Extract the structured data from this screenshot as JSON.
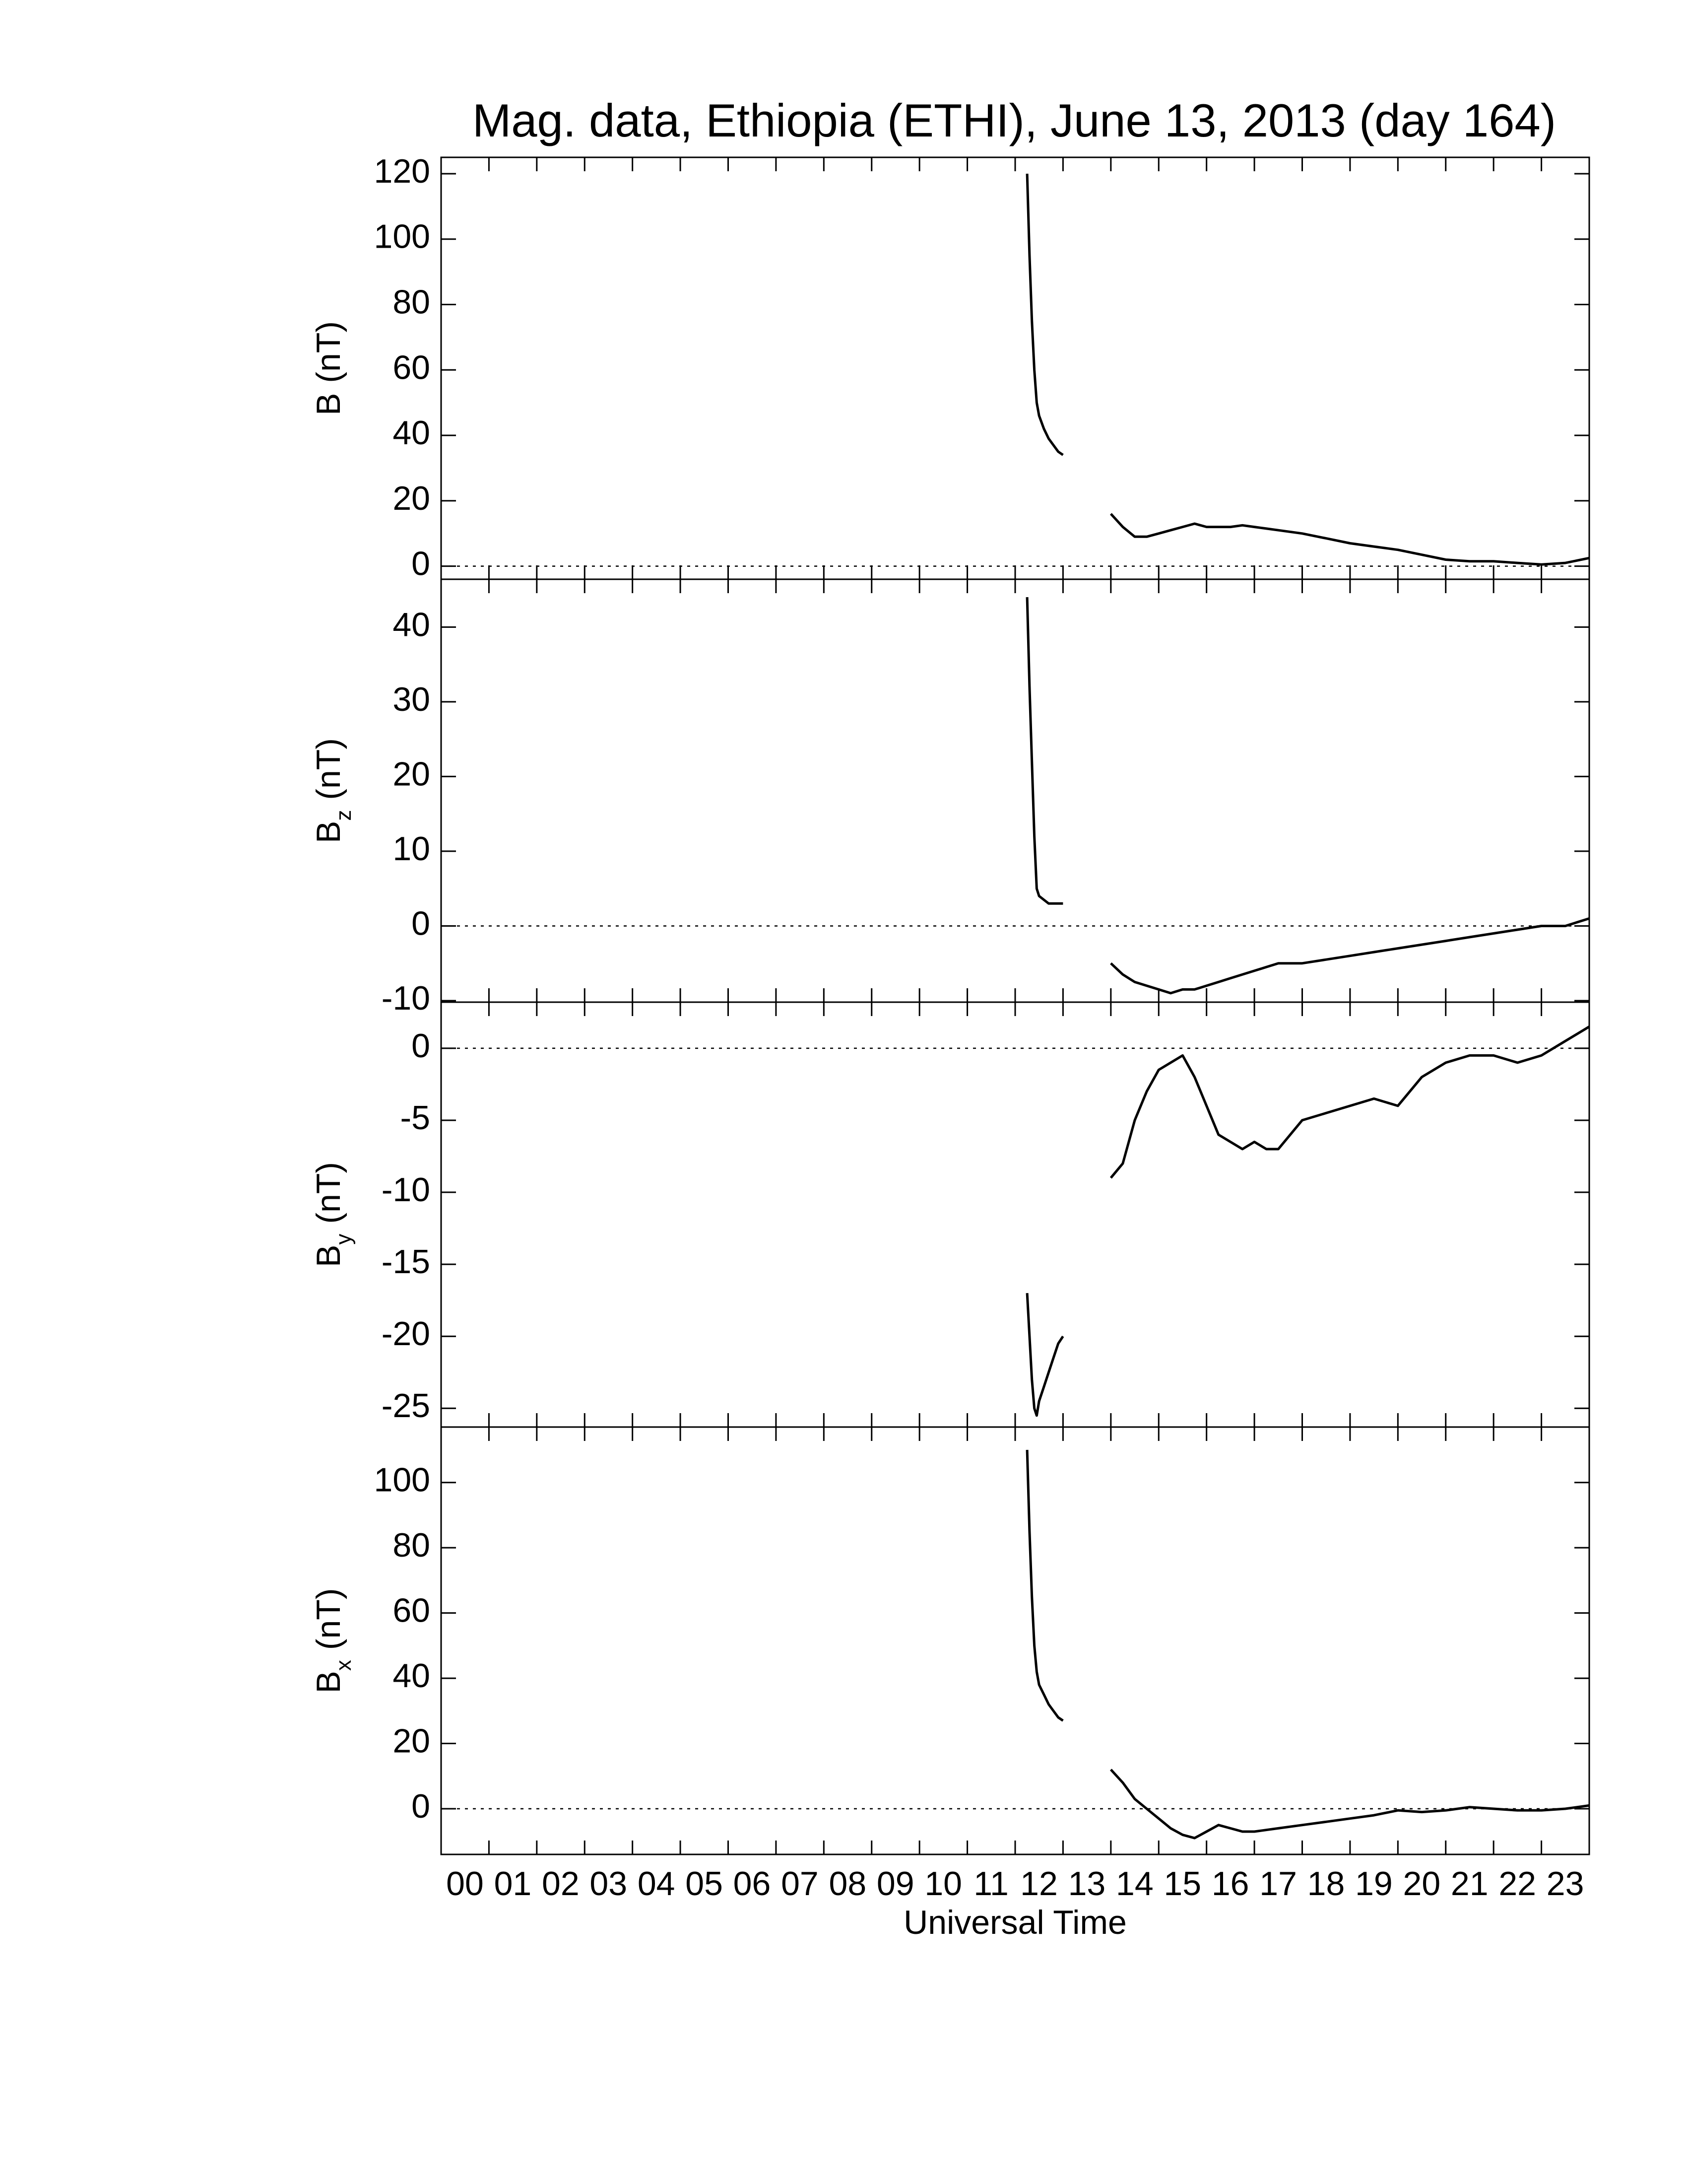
{
  "title": "Mag. data, Ethiopia (ETHI), June 13, 2013 (day 164)",
  "chart_data": [
    {
      "type": "line",
      "ylabel": "B",
      "ylabel_unit": "(nT)",
      "color": "#000000",
      "zero_line": true,
      "xlim": [
        0,
        24
      ],
      "xticks": [
        0,
        1,
        2,
        3,
        4,
        5,
        6,
        7,
        8,
        9,
        10,
        11,
        12,
        13,
        14,
        15,
        16,
        17,
        18,
        19,
        20,
        21,
        22,
        23
      ],
      "ylim": [
        -4,
        125
      ],
      "yticks": [
        0,
        20,
        40,
        60,
        80,
        100,
        120
      ],
      "x": [
        12.25,
        12.3,
        12.35,
        12.4,
        12.45,
        12.5,
        12.6,
        12.7,
        12.8,
        12.9,
        13.0,
        13.5,
        14.0,
        14.25,
        14.5,
        14.75,
        15.0,
        15.25,
        15.5,
        15.75,
        16.0,
        16.25,
        16.5,
        16.75,
        17.0,
        17.25,
        17.5,
        18,
        18.5,
        19,
        19.5,
        20,
        20.5,
        21,
        21.5,
        22,
        22.5,
        23,
        23.5,
        24
      ],
      "values": [
        120,
        95,
        75,
        60,
        50,
        46,
        42,
        39,
        37,
        35,
        34,
        null,
        16,
        12,
        9,
        9,
        10,
        11,
        12,
        13,
        12,
        12,
        12,
        12.5,
        12,
        11.5,
        11,
        10,
        8.5,
        7,
        6,
        5,
        3.5,
        2,
        1.5,
        1.5,
        1,
        0.5,
        1,
        2.5
      ]
    },
    {
      "type": "line",
      "ylabel": "B",
      "ylabel_sub": "z",
      "ylabel_unit": "(nT)",
      "color": "#000000",
      "zero_line": true,
      "xlim": [
        0,
        24
      ],
      "xticks": [
        0,
        1,
        2,
        3,
        4,
        5,
        6,
        7,
        8,
        9,
        10,
        11,
        12,
        13,
        14,
        15,
        16,
        17,
        18,
        19,
        20,
        21,
        22,
        23
      ],
      "ylim": [
        -10.2,
        46.4
      ],
      "yticks": [
        -10,
        0,
        10,
        20,
        30,
        40
      ],
      "x": [
        12.25,
        12.3,
        12.35,
        12.4,
        12.45,
        12.5,
        12.6,
        12.7,
        12.8,
        12.9,
        13.0,
        13.5,
        14.0,
        14.25,
        14.5,
        14.75,
        15.0,
        15.25,
        15.5,
        15.75,
        16.0,
        16.25,
        16.5,
        16.75,
        17.0,
        17.25,
        17.5,
        18,
        18.5,
        19,
        19.5,
        20,
        20.5,
        21,
        21.5,
        22,
        22.5,
        23,
        23.5,
        24
      ],
      "values": [
        44,
        32,
        22,
        12,
        5,
        4,
        3.5,
        3,
        3,
        3,
        3,
        null,
        -5,
        -6.5,
        -7.5,
        -8,
        -8.5,
        -9,
        -8.5,
        -8.5,
        -8,
        -7.5,
        -7,
        -6.5,
        -6,
        -5.5,
        -5,
        -5,
        -4.5,
        -4,
        -3.5,
        -3,
        -2.5,
        -2,
        -1.5,
        -1,
        -0.5,
        0,
        0,
        1
      ]
    },
    {
      "type": "line",
      "ylabel": "B",
      "ylabel_sub": "y",
      "ylabel_unit": "(nT)",
      "color": "#000000",
      "zero_line": true,
      "xlim": [
        0,
        24
      ],
      "xticks": [
        0,
        1,
        2,
        3,
        4,
        5,
        6,
        7,
        8,
        9,
        10,
        11,
        12,
        13,
        14,
        15,
        16,
        17,
        18,
        19,
        20,
        21,
        22,
        23
      ],
      "ylim": [
        -26.3,
        3.2
      ],
      "yticks": [
        -25,
        -20,
        -15,
        -10,
        -5,
        0
      ],
      "x": [
        12.25,
        12.3,
        12.35,
        12.4,
        12.45,
        12.5,
        12.6,
        12.7,
        12.8,
        12.9,
        13.0,
        13.5,
        14.0,
        14.25,
        14.5,
        14.75,
        15.0,
        15.25,
        15.5,
        15.75,
        16.0,
        16.25,
        16.5,
        16.75,
        17.0,
        17.25,
        17.5,
        18,
        18.5,
        19,
        19.5,
        20,
        20.5,
        21,
        21.5,
        22,
        22.5,
        23,
        23.5,
        24
      ],
      "values": [
        -17,
        -20,
        -23,
        -25,
        -25.5,
        -24.5,
        -23.5,
        -22.5,
        -21.5,
        -20.5,
        -20,
        null,
        -9,
        -8,
        -5,
        -3,
        -1.5,
        -1,
        -0.5,
        -2,
        -4,
        -6,
        -6.5,
        -7,
        -6.5,
        -7,
        -7,
        -5,
        -4.5,
        -4,
        -3.5,
        -4,
        -2,
        -1,
        -0.5,
        -0.5,
        -1,
        -0.5,
        0.5,
        1.5
      ]
    },
    {
      "type": "line",
      "ylabel": "B",
      "ylabel_sub": "x",
      "ylabel_unit": "(nT)",
      "color": "#000000",
      "zero_line": true,
      "xlabel": "Universal Time",
      "xlim": [
        0,
        24
      ],
      "xticks": [
        {
          "value": 0,
          "label": "00"
        },
        {
          "value": 1,
          "label": "01"
        },
        {
          "value": 2,
          "label": "02"
        },
        {
          "value": 3,
          "label": "03"
        },
        {
          "value": 4,
          "label": "04"
        },
        {
          "value": 5,
          "label": "05"
        },
        {
          "value": 6,
          "label": "06"
        },
        {
          "value": 7,
          "label": "07"
        },
        {
          "value": 8,
          "label": "08"
        },
        {
          "value": 9,
          "label": "09"
        },
        10,
        11,
        12,
        13,
        14,
        15,
        16,
        17,
        18,
        19,
        20,
        21,
        22,
        23
      ],
      "ylim": [
        -14,
        117
      ],
      "yticks": [
        0,
        20,
        40,
        60,
        80,
        100
      ],
      "x": [
        12.25,
        12.3,
        12.35,
        12.4,
        12.45,
        12.5,
        12.6,
        12.7,
        12.8,
        12.9,
        13.0,
        13.5,
        14.0,
        14.25,
        14.5,
        14.75,
        15.0,
        15.25,
        15.5,
        15.75,
        16.0,
        16.25,
        16.5,
        16.75,
        17.0,
        17.25,
        17.5,
        18,
        18.5,
        19,
        19.5,
        20,
        20.5,
        21,
        21.5,
        22,
        22.5,
        23,
        23.5,
        24
      ],
      "values": [
        110,
        85,
        65,
        50,
        42,
        38,
        35,
        32,
        30,
        28,
        27,
        null,
        12,
        8,
        3,
        0,
        -3,
        -6,
        -8,
        -9,
        -7,
        -5,
        -6,
        -7,
        -7,
        -6.5,
        -6,
        -5,
        -4,
        -3,
        -2,
        -0.5,
        -1,
        -0.5,
        0.5,
        0,
        -0.5,
        -0.5,
        0,
        1
      ]
    }
  ]
}
